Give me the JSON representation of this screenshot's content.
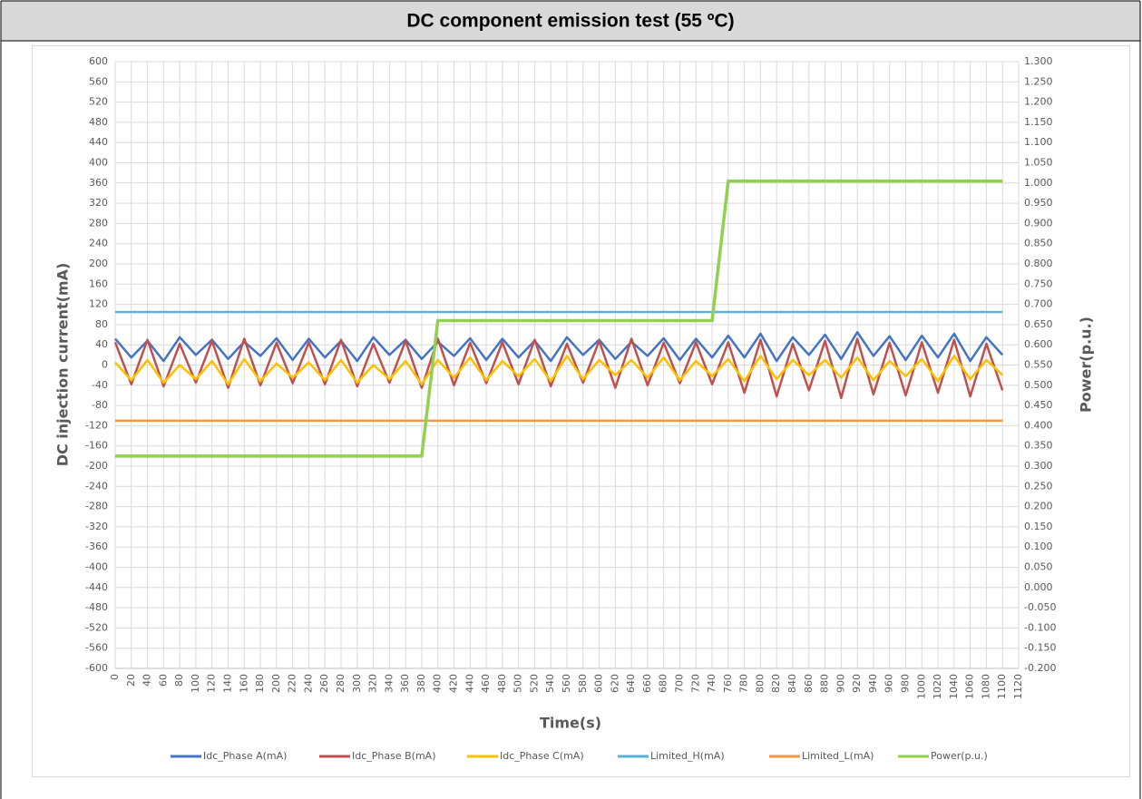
{
  "chart_data": {
    "type": "line",
    "title": "DC component emission test (55 ºC)",
    "x_label": "Time(s)",
    "y_label": "DC injection current(mA)",
    "y2_label": "Power(p.u.)",
    "grid": true,
    "legend": "bottom",
    "x": [
      0,
      20,
      40,
      60,
      80,
      100,
      120,
      140,
      160,
      180,
      200,
      220,
      240,
      260,
      280,
      300,
      320,
      340,
      360,
      380,
      400,
      420,
      440,
      460,
      480,
      500,
      520,
      540,
      560,
      580,
      600,
      620,
      640,
      660,
      680,
      700,
      720,
      740,
      760,
      780,
      800,
      820,
      840,
      860,
      880,
      900,
      920,
      940,
      960,
      980,
      1000,
      1020,
      1040,
      1060,
      1080,
      1100
    ],
    "xlim": [
      0,
      1120
    ],
    "xticks": [
      0,
      20,
      40,
      60,
      80,
      100,
      120,
      140,
      160,
      180,
      200,
      220,
      240,
      260,
      280,
      300,
      320,
      340,
      360,
      380,
      400,
      420,
      440,
      460,
      480,
      500,
      520,
      540,
      560,
      580,
      600,
      620,
      640,
      660,
      680,
      700,
      720,
      740,
      760,
      780,
      800,
      820,
      840,
      860,
      880,
      900,
      920,
      940,
      960,
      980,
      1000,
      1020,
      1040,
      1060,
      1080,
      1100,
      1120
    ],
    "ylim": [
      -600,
      600
    ],
    "yticks": [
      -600,
      -560,
      -520,
      -480,
      -440,
      -400,
      -360,
      -320,
      -280,
      -240,
      -200,
      -160,
      -120,
      -80,
      -40,
      0,
      40,
      80,
      120,
      160,
      200,
      240,
      280,
      320,
      360,
      400,
      440,
      480,
      520,
      560,
      600
    ],
    "y2lim": [
      -0.2,
      1.3
    ],
    "y2ticks": [
      {
        "value": -0.2,
        "label": "-0.200"
      },
      {
        "value": -0.15,
        "label": "-0.150"
      },
      {
        "value": -0.1,
        "label": "-0.100"
      },
      {
        "value": -0.05,
        "label": "-0.050"
      },
      {
        "value": 0,
        "label": "0.000"
      },
      {
        "value": 0.05,
        "label": "0.050"
      },
      {
        "value": 0.1,
        "label": "0.100"
      },
      {
        "value": 0.15,
        "label": "0.150"
      },
      {
        "value": 0.2,
        "label": "0.200"
      },
      {
        "value": 0.25,
        "label": "0.250"
      },
      {
        "value": 0.3,
        "label": "0.300"
      },
      {
        "value": 0.35,
        "label": "0.350"
      },
      {
        "value": 0.4,
        "label": "0.400"
      },
      {
        "value": 0.45,
        "label": "0.450"
      },
      {
        "value": 0.5,
        "label": "0.500"
      },
      {
        "value": 0.55,
        "label": "0.550"
      },
      {
        "value": 0.6,
        "label": "0.600"
      },
      {
        "value": 0.65,
        "label": "0.650"
      },
      {
        "value": 0.7,
        "label": "0.700"
      },
      {
        "value": 0.75,
        "label": "0.750"
      },
      {
        "value": 0.8,
        "label": "0.800"
      },
      {
        "value": 0.85,
        "label": "0.850"
      },
      {
        "value": 0.9,
        "label": "0.900"
      },
      {
        "value": 0.95,
        "label": "0.950"
      },
      {
        "value": 1.0,
        "label": "1.000"
      },
      {
        "value": 1.05,
        "label": "1.050"
      },
      {
        "value": 1.1,
        "label": "1.100"
      },
      {
        "value": 1.15,
        "label": "1.150"
      },
      {
        "value": 1.2,
        "label": "1.200"
      },
      {
        "value": 1.25,
        "label": "1.250"
      },
      {
        "value": 1.3,
        "label": "1.300"
      }
    ],
    "series": [
      {
        "name": "Idc_Phase A(mA)",
        "color": "#4472c4",
        "values": [
          52,
          15,
          48,
          8,
          55,
          20,
          50,
          12,
          46,
          18,
          53,
          10,
          52,
          15,
          48,
          8,
          55,
          20,
          50,
          12,
          46,
          18,
          53,
          10,
          52,
          15,
          48,
          8,
          55,
          20,
          50,
          12,
          46,
          18,
          53,
          10,
          52,
          15,
          58,
          15,
          62,
          8,
          55,
          20,
          60,
          12,
          65,
          18,
          57,
          10,
          58,
          15,
          62,
          8,
          55,
          20
        ]
      },
      {
        "name": "Idc_Phase B(mA)",
        "color": "#c0504d",
        "values": [
          45,
          -38,
          50,
          -42,
          42,
          -35,
          48,
          -45,
          52,
          -40,
          44,
          -36,
          45,
          -38,
          50,
          -42,
          42,
          -35,
          48,
          -45,
          52,
          -40,
          44,
          -36,
          45,
          -38,
          50,
          -42,
          42,
          -35,
          48,
          -45,
          52,
          -40,
          44,
          -36,
          45,
          -38,
          45,
          -55,
          50,
          -62,
          42,
          -50,
          48,
          -65,
          52,
          -58,
          44,
          -60,
          45,
          -55,
          50,
          -62,
          42,
          -50
        ]
      },
      {
        "name": "Idc_Phase C(mA)",
        "color": "#ffc000",
        "values": [
          5,
          -30,
          10,
          -35,
          0,
          -28,
          8,
          -38,
          12,
          -32,
          3,
          -25,
          5,
          -30,
          10,
          -35,
          0,
          -28,
          8,
          -38,
          10,
          -25,
          15,
          -30,
          8,
          -22,
          12,
          -32,
          18,
          -28,
          10,
          -20,
          10,
          -25,
          15,
          -30,
          8,
          -22,
          12,
          -32,
          18,
          -28,
          10,
          -20,
          10,
          -25,
          15,
          -30,
          8,
          -22,
          12,
          -32,
          18,
          -28,
          10,
          -20
        ]
      },
      {
        "name": "Limited_H(mA)",
        "color": "#5bb0d8",
        "values": [
          105,
          105,
          105,
          105,
          105,
          105,
          105,
          105,
          105,
          105,
          105,
          105,
          105,
          105,
          105,
          105,
          105,
          105,
          105,
          105,
          105,
          105,
          105,
          105,
          105,
          105,
          105,
          105,
          105,
          105,
          105,
          105,
          105,
          105,
          105,
          105,
          105,
          105,
          105,
          105,
          105,
          105,
          105,
          105,
          105,
          105,
          105,
          105,
          105,
          105,
          105,
          105,
          105,
          105,
          105,
          105
        ]
      },
      {
        "name": "Limited_L(mA)",
        "color": "#f79646",
        "values": [
          -110,
          -110,
          -110,
          -110,
          -110,
          -110,
          -110,
          -110,
          -110,
          -110,
          -110,
          -110,
          -110,
          -110,
          -110,
          -110,
          -110,
          -110,
          -110,
          -110,
          -110,
          -110,
          -110,
          -110,
          -110,
          -110,
          -110,
          -110,
          -110,
          -110,
          -110,
          -110,
          -110,
          -110,
          -110,
          -110,
          -110,
          -110,
          -110,
          -110,
          -110,
          -110,
          -110,
          -110,
          -110,
          -110,
          -110,
          -110,
          -110,
          -110,
          -110,
          -110,
          -110,
          -110,
          -110,
          -110
        ]
      },
      {
        "name": "Power(p.u.)",
        "color": "#92d050",
        "axis": "y2",
        "values": [
          0.325,
          0.325,
          0.325,
          0.325,
          0.325,
          0.325,
          0.325,
          0.325,
          0.325,
          0.325,
          0.325,
          0.325,
          0.325,
          0.325,
          0.325,
          0.325,
          0.325,
          0.325,
          0.325,
          0.325,
          0.66,
          0.66,
          0.66,
          0.66,
          0.66,
          0.66,
          0.66,
          0.66,
          0.66,
          0.66,
          0.66,
          0.66,
          0.66,
          0.66,
          0.66,
          0.66,
          0.66,
          0.66,
          1.005,
          1.005,
          1.005,
          1.005,
          1.005,
          1.005,
          1.005,
          1.005,
          1.005,
          1.005,
          1.005,
          1.005,
          1.005,
          1.005,
          1.005,
          1.005,
          1.005,
          1.005
        ]
      }
    ]
  }
}
